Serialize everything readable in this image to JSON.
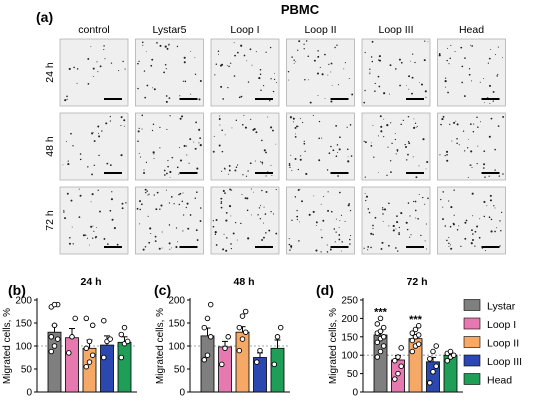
{
  "figure": {
    "title": "PBMC",
    "panel_labels": [
      "(a)",
      "(b)",
      "(c)",
      "(d)"
    ],
    "columns": [
      "control",
      "Lystar5",
      "Loop I",
      "Loop II",
      "Loop III",
      "Head"
    ],
    "rows": [
      "24 h",
      "48 h",
      "72 h"
    ]
  },
  "colors": {
    "Lystar": "#7f7f7f",
    "Loop I": "#e67ab0",
    "Loop II": "#f6a866",
    "Loop III": "#2a48b0",
    "Head": "#1f9e57"
  },
  "legend": [
    "Lystar",
    "Loop I",
    "Loop II",
    "Loop III",
    "Head"
  ],
  "chart_data": [
    {
      "type": "bar",
      "panel": "(b)",
      "title": "24 h",
      "ylabel": "Migrated cells, %",
      "ylim": [
        0,
        200
      ],
      "yticks": [
        0,
        50,
        100,
        150,
        200
      ],
      "reference_line": 100,
      "categories": [
        "Lystar",
        "Loop I",
        "Loop II",
        "Loop III",
        "Head"
      ],
      "values": [
        130,
        118,
        95,
        102,
        108
      ],
      "errors": [
        15,
        20,
        18,
        20,
        12
      ],
      "points": [
        [
          88,
          100,
          115,
          120,
          145,
          190,
          185,
          190
        ],
        [
          85,
          120,
          160
        ],
        [
          55,
          65,
          80,
          95,
          110,
          145,
          160
        ],
        [
          75,
          110,
          115,
          155
        ],
        [
          75,
          105,
          110,
          125,
          140
        ]
      ],
      "significance": [
        "",
        "",
        "",
        "",
        ""
      ]
    },
    {
      "type": "bar",
      "panel": "(c)",
      "title": "48 h",
      "ylabel": "Migrated cells, %",
      "ylim": [
        0,
        200
      ],
      "yticks": [
        0,
        50,
        100,
        150,
        200
      ],
      "reference_line": 100,
      "categories": [
        "Lystar",
        "Loop I",
        "Loop II",
        "Loop III",
        "Head"
      ],
      "values": [
        122,
        98,
        130,
        75,
        95
      ],
      "errors": [
        17,
        12,
        12,
        10,
        18
      ],
      "points": [
        [
          70,
          80,
          120,
          140,
          160,
          190
        ],
        [
          60,
          95,
          120
        ],
        [
          90,
          115,
          130,
          140,
          165,
          175
        ],
        [
          65,
          90
        ],
        [
          60,
          120,
          140
        ]
      ],
      "significance": [
        "",
        "",
        "",
        "",
        ""
      ]
    },
    {
      "type": "bar",
      "panel": "(d)",
      "title": "72 h",
      "ylabel": "Migrated cells, %",
      "ylim": [
        0,
        250
      ],
      "yticks": [
        0,
        50,
        100,
        150,
        200,
        250
      ],
      "reference_line": 100,
      "categories": [
        "Lystar",
        "Loop I",
        "Loop II",
        "Loop III",
        "Head"
      ],
      "values": [
        155,
        87,
        145,
        82,
        100
      ],
      "errors": [
        10,
        12,
        7,
        12,
        4
      ],
      "points": [
        [
          95,
          110,
          125,
          135,
          145,
          150,
          160,
          165,
          175,
          185,
          200
        ],
        [
          35,
          50,
          70,
          85,
          95,
          120
        ],
        [
          110,
          125,
          130,
          140,
          150,
          155,
          160,
          170,
          180
        ],
        [
          25,
          55,
          70,
          90,
          110,
          125
        ],
        [
          85,
          95,
          100,
          105,
          110
        ]
      ],
      "significance": [
        "***",
        "",
        "***",
        "",
        ""
      ]
    }
  ]
}
